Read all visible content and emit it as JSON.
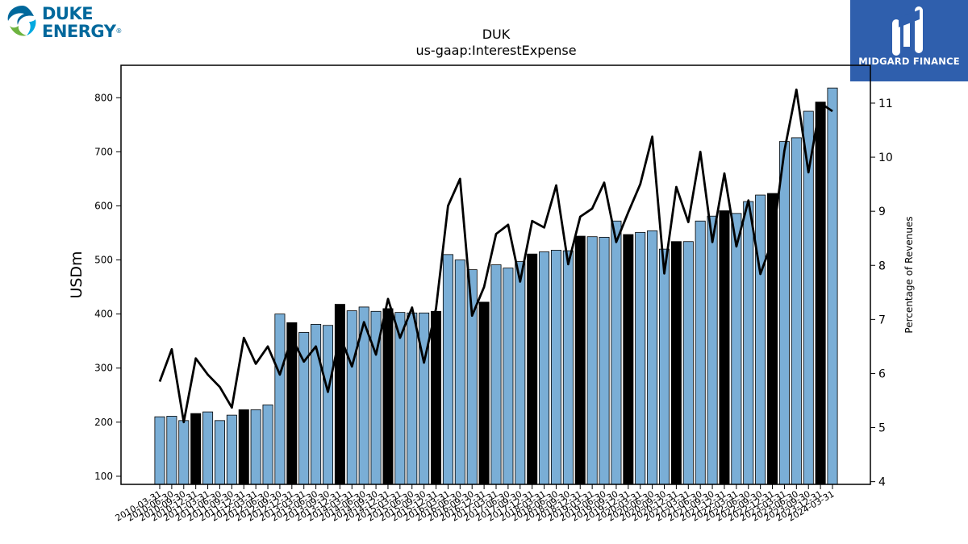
{
  "logos": {
    "left": {
      "line1": "DUKE",
      "line2": "ENERGY",
      "mark": "®",
      "brand_color": "#00689c"
    },
    "right": {
      "text": "MIDGARD FINANCE",
      "bg_color": "#2f5fad"
    }
  },
  "chart_data": {
    "type": "bar",
    "title": "DUK",
    "subtitle": "us-gaap:InterestExpense",
    "ylabel": "USDm",
    "y2label": "Percentage of Revenues",
    "ylim": [
      85,
      860
    ],
    "y2lim": [
      3.95,
      11.7
    ],
    "yticks": [
      100,
      200,
      300,
      400,
      500,
      600,
      700,
      800
    ],
    "y2ticks": [
      4,
      5,
      6,
      7,
      8,
      9,
      10,
      11
    ],
    "bar_color": "#7aaed6",
    "highlight_color": "#000000",
    "line_color": "#000000",
    "categories": [
      "2010-03-31",
      "2010-06-30",
      "2010-09-30",
      "2010-12-31",
      "2011-03-31",
      "2011-06-30",
      "2011-09-30",
      "2011-12-31",
      "2012-03-31",
      "2012-06-30",
      "2012-09-30",
      "2012-12-31",
      "2013-03-31",
      "2013-06-30",
      "2013-09-30",
      "2013-12-31",
      "2014-03-31",
      "2014-06-30",
      "2014-09-30",
      "2014-12-31",
      "2015-03-31",
      "2015-06-30",
      "2015-09-30",
      "2015-12-31",
      "2016-03-31",
      "2016-06-30",
      "2016-09-30",
      "2016-12-31",
      "2017-03-31",
      "2017-06-30",
      "2017-09-30",
      "2017-12-31",
      "2018-03-31",
      "2018-06-30",
      "2018-09-30",
      "2018-12-31",
      "2019-03-31",
      "2019-06-30",
      "2019-09-30",
      "2019-12-31",
      "2020-03-31",
      "2020-06-30",
      "2020-09-30",
      "2020-12-31",
      "2021-03-31",
      "2021-06-30",
      "2021-09-30",
      "2021-12-31",
      "2022-03-31",
      "2022-06-30",
      "2022-09-30",
      "2022-12-31",
      "2023-03-31",
      "2023-06-30",
      "2023-09-30",
      "2023-12-31",
      "2024-03-31"
    ],
    "series": [
      {
        "type": "bar",
        "values": [
          210,
          211,
          203,
          216,
          219,
          203,
          213,
          223,
          223,
          232,
          400,
          384,
          366,
          381,
          379,
          418,
          406,
          413,
          405,
          410,
          403,
          402,
          402,
          405,
          510,
          500,
          482,
          422,
          491,
          485,
          497,
          511,
          515,
          518,
          517,
          544,
          543,
          542,
          572,
          547,
          551,
          554,
          520,
          534,
          534,
          572,
          581,
          591,
          586,
          608,
          620,
          623,
          719,
          726,
          775,
          792,
          818
        ],
        "highlight": [
          false,
          false,
          false,
          true,
          false,
          false,
          false,
          true,
          false,
          false,
          false,
          true,
          false,
          false,
          false,
          true,
          false,
          false,
          false,
          true,
          false,
          false,
          false,
          true,
          false,
          false,
          false,
          true,
          false,
          false,
          false,
          true,
          false,
          false,
          false,
          true,
          false,
          false,
          false,
          true,
          false,
          false,
          false,
          true,
          false,
          false,
          false,
          true,
          false,
          false,
          false,
          true,
          false,
          false,
          false,
          true,
          false
        ]
      },
      {
        "type": "line",
        "axis": "right",
        "values": [
          5.85,
          6.45,
          5.1,
          6.28,
          5.98,
          5.75,
          5.37,
          6.66,
          6.18,
          6.5,
          5.98,
          6.66,
          6.22,
          6.5,
          5.66,
          6.7,
          6.13,
          6.95,
          6.35,
          7.38,
          6.66,
          7.22,
          6.2,
          7.2,
          9.1,
          9.6,
          7.07,
          7.6,
          8.58,
          8.75,
          7.7,
          8.82,
          8.7,
          9.48,
          8.02,
          8.9,
          9.05,
          9.53,
          8.43,
          8.98,
          9.5,
          10.38,
          7.85,
          9.45,
          8.8,
          10.1,
          8.43,
          9.7,
          8.35,
          9.2,
          7.84,
          8.45,
          10.12,
          11.25,
          9.72,
          11.0,
          10.85
        ]
      }
    ],
    "grid": false,
    "legend": "none"
  }
}
